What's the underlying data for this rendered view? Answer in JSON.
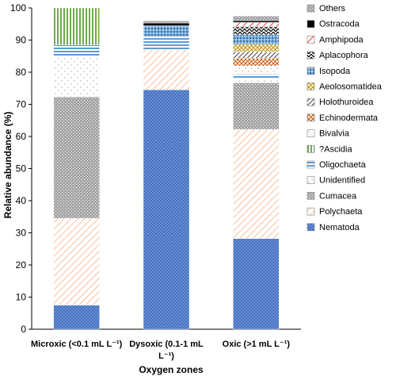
{
  "chart_data": {
    "type": "bar",
    "stacked": true,
    "title": "",
    "xlabel": "Oxygen zones",
    "ylabel": "Relative abundance (%)",
    "ylim": [
      0,
      100
    ],
    "yticks": [
      0,
      10,
      20,
      30,
      40,
      50,
      60,
      70,
      80,
      90,
      100
    ],
    "legend_position": "right",
    "categories": [
      {
        "line1": "Microxic  (<0.1 mL L⁻¹)",
        "line2": ""
      },
      {
        "line1": "Dysoxic (0.1-1 mL",
        "line2": "L⁻¹)"
      },
      {
        "line1": "Oxic (>1 mL L⁻¹)",
        "line2": ""
      }
    ],
    "series": [
      {
        "name": "Nematoda",
        "color": "#4472c4",
        "pattern": "dots",
        "values": [
          7.5,
          74.5,
          28.2
        ]
      },
      {
        "name": "Polychaeta",
        "color": "#f4b183",
        "pattern": "diag",
        "values": [
          27.0,
          12.5,
          34.0
        ]
      },
      {
        "name": "Cumacea",
        "color": "#a5a5a5",
        "pattern": "grid",
        "values": [
          37.8,
          0.0,
          14.5
        ]
      },
      {
        "name": "Unidentified",
        "color": "#d9d9d9",
        "pattern": "light",
        "values": [
          12.5,
          0.0,
          1.5
        ]
      },
      {
        "name": "Oligochaeta",
        "color": "#5b9bd5",
        "pattern": "hstripe",
        "values": [
          3.7,
          4.0,
          1.2
        ]
      },
      {
        "name": "?Ascidia",
        "color": "#70ad47",
        "pattern": "vstripe",
        "values": [
          11.5,
          0.0,
          0.0
        ]
      },
      {
        "name": "Bivalvia",
        "color": "#bfbfbf",
        "pattern": "light",
        "values": [
          0.0,
          0.0,
          2.5
        ]
      },
      {
        "name": "Echinodermata",
        "color": "#c55a11",
        "pattern": "cross",
        "values": [
          0.0,
          0.0,
          2.5
        ]
      },
      {
        "name": "Holothuroidea",
        "color": "#404040",
        "pattern": "diagdark",
        "values": [
          0.0,
          0.0,
          2.0
        ]
      },
      {
        "name": "Aeolosomatidea",
        "color": "#bf9000",
        "pattern": "cross",
        "values": [
          0.0,
          0.0,
          2.3
        ]
      },
      {
        "name": "Isopoda",
        "color": "#2e75b6",
        "pattern": "grid",
        "values": [
          0.0,
          3.5,
          3.0
        ]
      },
      {
        "name": "Aplacophora",
        "color": "#000000",
        "pattern": "zigzag",
        "values": [
          0.0,
          0.0,
          2.5
        ]
      },
      {
        "name": "Amphipoda",
        "color": "#ff0000",
        "pattern": "diag",
        "values": [
          0.0,
          0.0,
          1.3
        ]
      },
      {
        "name": "Ostracoda",
        "color": "#000000",
        "pattern": "solid",
        "values": [
          0.0,
          0.8,
          0.5
        ]
      },
      {
        "name": "Others",
        "color": "#a5a5a5",
        "pattern": "grid",
        "values": [
          0.0,
          0.7,
          1.5
        ]
      }
    ],
    "legend_order": [
      "Others",
      "Ostracoda",
      "Amphipoda",
      "Aplacophora",
      "Isopoda",
      "Aeolosomatidea",
      "Holothuroidea",
      "Echinodermata",
      "Bivalvia",
      "?Ascidia",
      "Oligochaeta",
      "Unidentified",
      "Cumacea",
      "Polychaeta",
      "Nematoda"
    ]
  }
}
